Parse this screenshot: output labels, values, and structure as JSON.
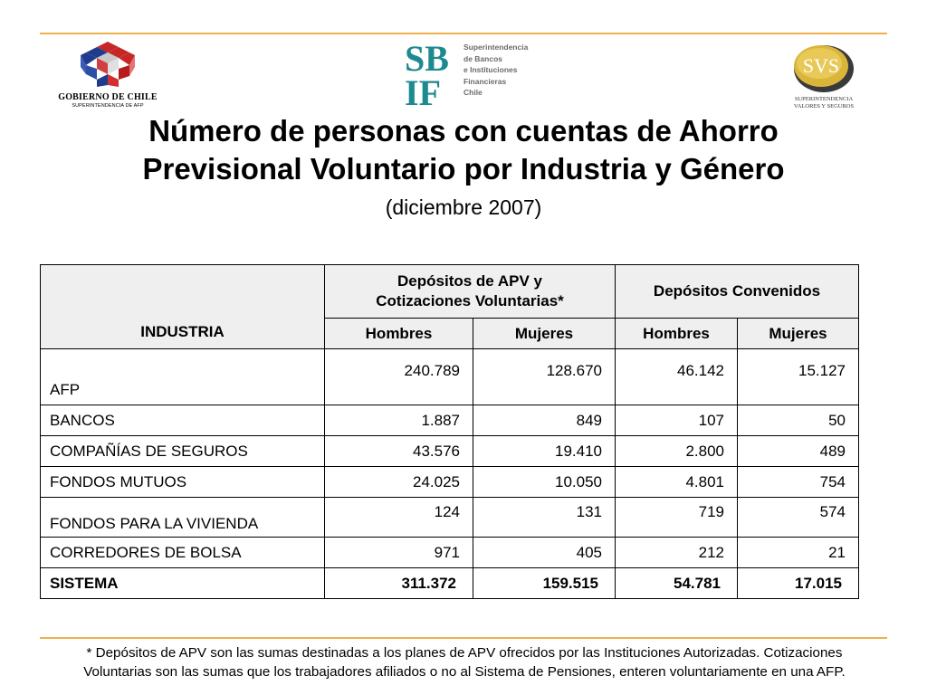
{
  "logos": {
    "gobierno": {
      "name": "GOBIERNO DE CHILE",
      "sub": "SUPERINTENDENCIA DE AFP"
    },
    "sbif": {
      "mark": [
        "SB",
        "IF"
      ],
      "lines": [
        "Superintendencia",
        "de Bancos",
        "e Instituciones",
        "Financieras",
        "Chile"
      ]
    },
    "svs": {
      "mark": "SVS",
      "sub1": "SUPERINTENDENCIA",
      "sub2": "VALORES Y SEGUROS"
    }
  },
  "title": {
    "line1": "Número de personas con cuentas de Ahorro",
    "line2": "Previsional Voluntario por Industria y Género",
    "subtitle": "(diciembre 2007)"
  },
  "table": {
    "industry_header": "INDUSTRIA",
    "group1_line1": "Depósitos de APV y",
    "group1_line2": "Cotizaciones Voluntarias*",
    "group2": "Depósitos Convenidos",
    "sub_headers": [
      "Hombres",
      "Mujeres",
      "Hombres",
      "Mujeres"
    ],
    "rows": [
      {
        "industry": "AFP",
        "values": [
          "240.789",
          "128.670",
          "46.142",
          "15.127"
        ]
      },
      {
        "industry": "BANCOS",
        "values": [
          "1.887",
          "849",
          "107",
          "50"
        ]
      },
      {
        "industry": "COMPAÑÍAS DE SEGUROS",
        "values": [
          "43.576",
          "19.410",
          "2.800",
          "489"
        ]
      },
      {
        "industry": "FONDOS MUTUOS",
        "values": [
          "24.025",
          "10.050",
          "4.801",
          "754"
        ]
      },
      {
        "industry": "FONDOS PARA LA VIVIENDA",
        "values": [
          "124",
          "131",
          "719",
          "574"
        ]
      },
      {
        "industry": "CORREDORES DE BOLSA",
        "values": [
          "971",
          "405",
          "212",
          "21"
        ]
      },
      {
        "industry": "SISTEMA",
        "values": [
          "311.372",
          "159.515",
          "54.781",
          "17.015"
        ]
      }
    ]
  },
  "footnote": {
    "line1": "* Depósitos de APV son las sumas destinadas a los planes de APV ofrecidos por las Instituciones Autorizadas. Cotizaciones",
    "line2": "Voluntarias son las sumas que los trabajadores afiliados o no al Sistema de Pensiones, enteren voluntariamente en una AFP."
  },
  "colors": {
    "rule": "#f0b04a",
    "sbif_teal": "#1d8a8f",
    "svs_gold": "#c9a227",
    "header_bg": "#efefef"
  }
}
